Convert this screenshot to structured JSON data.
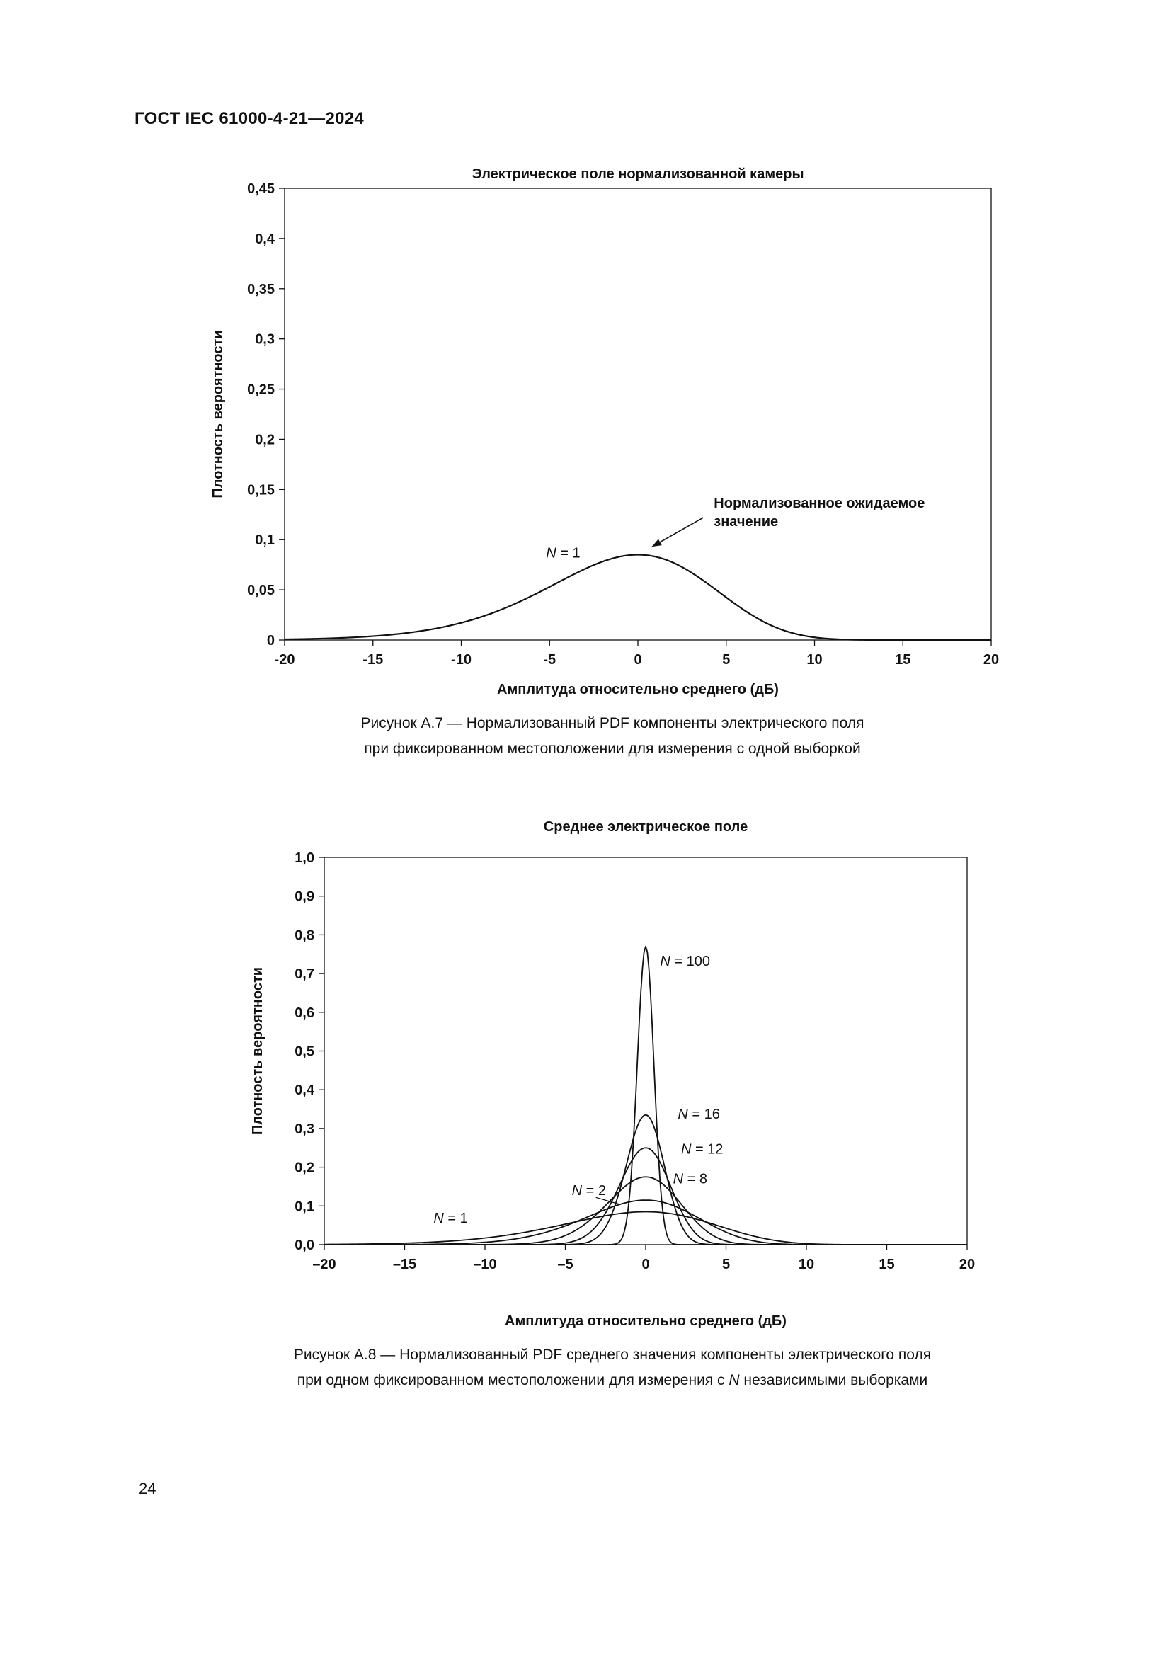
{
  "page": {
    "header": "ГОСТ IEC 61000-4-21—2024",
    "page_number": "24"
  },
  "figure_a7": {
    "caption_line1": "Рисунок А.7 — Нормализованный PDF компоненты электрического поля",
    "caption_line2": "при фиксированном местоположении для измерения с одной выборкой"
  },
  "figure_a8": {
    "caption_line1": "Рисунок А.8 — Нормализованный PDF среднего значения компоненты электрического поля",
    "caption_line2_pre": "при одном фиксированном местоположении для измерения с ",
    "caption_line2_n": "N",
    "caption_line2_post": " независимыми выборками"
  },
  "chart_data": [
    {
      "type": "line",
      "title": "Электрическое поле нормализованной камеры",
      "xlabel": "Амплитуда относительно среднего (дБ)",
      "ylabel": "Плотность вероятности",
      "xlim": [
        -20,
        20
      ],
      "ylim": [
        0,
        0.45
      ],
      "grid": false,
      "legend": "none",
      "x_ticks": [
        -20,
        -15,
        -10,
        -5,
        0,
        5,
        10,
        15,
        20
      ],
      "x_tick_labels": [
        "-20",
        "-15",
        "-10",
        "-5",
        "0",
        "5",
        "10",
        "15",
        "20"
      ],
      "y_ticks": [
        0,
        0.05,
        0.1,
        0.15,
        0.2,
        0.25,
        0.3,
        0.35,
        0.4,
        0.45
      ],
      "y_tick_labels": [
        "0",
        "0,05",
        "0,1",
        "0,15",
        "0,2",
        "0,25",
        "0,3",
        "0,35",
        "0,4",
        "0,45"
      ],
      "curve_model": "normalized PDF of rectangular E-field component in dB relative to mean; peak at 0 dB",
      "series": [
        {
          "name": "N = 1",
          "peak_density": 0.085,
          "peak_x_db": 0,
          "label_pos": [
            -5.2,
            0.082
          ]
        }
      ],
      "annotation": {
        "lines": [
          "Нормализованное ожидаемое",
          "значение"
        ],
        "pos": [
          4.3,
          0.132
        ],
        "arrow_from": [
          3.7,
          0.122
        ],
        "arrow_to": [
          0.8,
          0.093
        ]
      }
    },
    {
      "type": "line",
      "title": "Среднее электрическое поле",
      "xlabel": "Амплитуда относительно среднего (дБ)",
      "ylabel": "Плотность вероятности",
      "xlim": [
        -20,
        20
      ],
      "ylim": [
        0,
        1.0
      ],
      "grid": false,
      "legend": "none",
      "x_ticks": [
        -20,
        -15,
        -10,
        -5,
        0,
        5,
        10,
        15,
        20
      ],
      "x_tick_labels": [
        "–20",
        "–15",
        "–10",
        "–5",
        "0",
        "5",
        "10",
        "15",
        "20"
      ],
      "y_ticks": [
        0,
        0.1,
        0.2,
        0.3,
        0.4,
        0.5,
        0.6,
        0.7,
        0.8,
        0.9,
        1.0
      ],
      "y_tick_labels": [
        "0,0",
        "0,1",
        "0,2",
        "0,3",
        "0,4",
        "0,5",
        "0,6",
        "0,7",
        "0,8",
        "0,9",
        "1,0"
      ],
      "curve_model": "normalized PDF of mean of N independent E-field samples in dB relative to mean; all peaks at 0 dB",
      "series": [
        {
          "name": "N = 1",
          "peak_density": 0.085,
          "peak_x_db": 0,
          "label_pos": [
            -13.2,
            0.057
          ]
        },
        {
          "name": "N = 2",
          "peak_density": 0.115,
          "peak_x_db": 0,
          "label_pos": [
            -4.6,
            0.128
          ],
          "leader_from": [
            -3.1,
            0.122
          ],
          "leader_to": [
            -1.6,
            0.104
          ]
        },
        {
          "name": "N = 8",
          "peak_density": 0.175,
          "peak_x_db": 0,
          "label_pos": [
            1.7,
            0.158
          ]
        },
        {
          "name": "N = 12",
          "peak_density": 0.25,
          "peak_x_db": 0,
          "label_pos": [
            2.2,
            0.235
          ]
        },
        {
          "name": "N = 16",
          "peak_density": 0.335,
          "peak_x_db": 0,
          "label_pos": [
            2.0,
            0.325
          ]
        },
        {
          "name": "N = 100",
          "peak_density": 0.77,
          "peak_x_db": 0,
          "label_pos": [
            0.9,
            0.72
          ]
        }
      ]
    }
  ]
}
